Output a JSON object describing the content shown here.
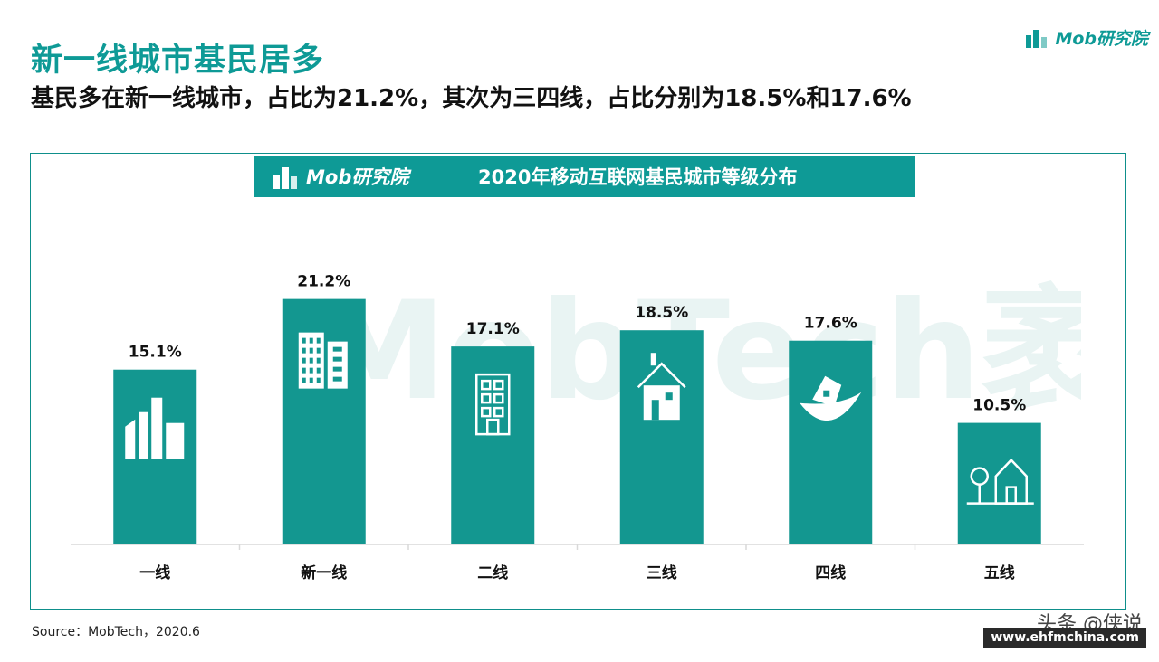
{
  "header": {
    "title": "新一线城市基民居多",
    "subtitle": "基民多在新一线城市，占比为21.2%，其次为三四线，占比分别为18.5%和17.6%",
    "logo_text": "Mob研究院"
  },
  "banner": {
    "logo_text": "Mob研究院",
    "title": "2020年移动互联网基民城市等级分布"
  },
  "watermark_text": "MobTech袤博",
  "chart_data": {
    "type": "bar",
    "title": "2020年移动互联网基民城市等级分布",
    "categories": [
      "一线",
      "新一线",
      "二线",
      "三线",
      "四线",
      "五线"
    ],
    "values": [
      15.1,
      21.2,
      17.1,
      18.5,
      17.6,
      10.5
    ],
    "value_labels": [
      "15.1%",
      "21.2%",
      "17.1%",
      "18.5%",
      "17.6%",
      "10.5%"
    ],
    "bar_icons": [
      "city-skyline-icon",
      "office-buildings-icon",
      "apartment-building-icon",
      "house-icon",
      "house-leaf-icon",
      "tree-house-icon"
    ],
    "unit": "%",
    "ylim": [
      0,
      25
    ],
    "grid": false,
    "bar_color": "#139790"
  },
  "footer": {
    "source": "Source：MobTech，2020.6",
    "credit": "头条 @侠说",
    "site": "www.ehfmchina.com"
  }
}
